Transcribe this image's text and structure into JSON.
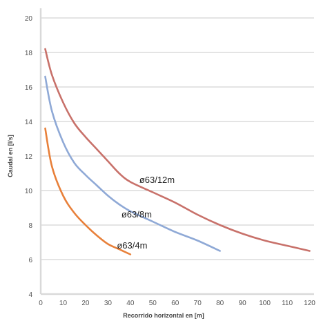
{
  "chart_data": {
    "type": "line",
    "xlabel": "Recorrido horizontal en [m]",
    "ylabel": "Caudal en [l/s]",
    "xlim": [
      0,
      122
    ],
    "ylim": [
      4,
      20
    ],
    "x_ticks": [
      "0",
      "10",
      "20",
      "30",
      "40",
      "50",
      "60",
      "70",
      "80",
      "90",
      "100",
      "110",
      "120"
    ],
    "y_ticks": [
      "4",
      "6",
      "8",
      "10",
      "12",
      "14",
      "16",
      "18",
      "20"
    ],
    "grid": true,
    "legend": "none",
    "series": [
      {
        "name": "ø63/12m",
        "color": "#c8716a",
        "x": [
          2,
          5,
          10,
          15,
          20,
          25,
          30,
          35,
          40,
          50,
          60,
          70,
          80,
          90,
          100,
          110,
          120
        ],
        "y": [
          18.2,
          16.7,
          15.1,
          13.9,
          13.1,
          12.4,
          11.7,
          11.0,
          10.5,
          9.9,
          9.3,
          8.6,
          8.0,
          7.5,
          7.1,
          6.8,
          6.5
        ]
      },
      {
        "name": "ø63/8m",
        "color": "#8fa9d6",
        "x": [
          2,
          5,
          10,
          15,
          20,
          25,
          30,
          35,
          40,
          50,
          60,
          70,
          80
        ],
        "y": [
          16.6,
          14.6,
          12.8,
          11.6,
          10.9,
          10.3,
          9.7,
          9.2,
          8.8,
          8.2,
          7.6,
          7.1,
          6.5
        ]
      },
      {
        "name": "ø63/4m",
        "color": "#e8803a",
        "x": [
          2,
          5,
          10,
          15,
          20,
          25,
          30,
          35,
          40
        ],
        "y": [
          13.6,
          11.4,
          9.7,
          8.7,
          8.0,
          7.4,
          6.9,
          6.6,
          6.3
        ]
      }
    ]
  }
}
